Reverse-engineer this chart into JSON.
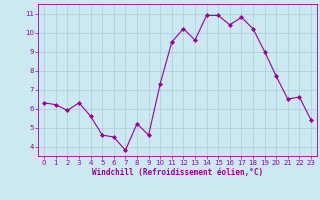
{
  "x": [
    0,
    1,
    2,
    3,
    4,
    5,
    6,
    7,
    8,
    9,
    10,
    11,
    12,
    13,
    14,
    15,
    16,
    17,
    18,
    19,
    20,
    21,
    22,
    23
  ],
  "y": [
    6.3,
    6.2,
    5.9,
    6.3,
    5.6,
    4.6,
    4.5,
    3.8,
    5.2,
    4.6,
    7.3,
    9.5,
    10.2,
    9.6,
    10.9,
    10.9,
    10.4,
    10.8,
    10.2,
    9.0,
    7.7,
    6.5,
    6.6,
    5.4
  ],
  "line_color": "#990099",
  "marker_color": "#990099",
  "bg_color": "#cce8f0",
  "grid_color": "#aaccdd",
  "xlabel": "Windchill (Refroidissement éolien,°C)",
  "xlabel_color": "#990099",
  "tick_color": "#990099",
  "ylim": [
    3.5,
    11.5
  ],
  "xlim": [
    -0.5,
    23.5
  ],
  "yticks": [
    4,
    5,
    6,
    7,
    8,
    9,
    10,
    11
  ],
  "xticks": [
    0,
    1,
    2,
    3,
    4,
    5,
    6,
    7,
    8,
    9,
    10,
    11,
    12,
    13,
    14,
    15,
    16,
    17,
    18,
    19,
    20,
    21,
    22,
    23
  ],
  "xtick_labels": [
    "0",
    "1",
    "2",
    "3",
    "4",
    "5",
    "6",
    "7",
    "8",
    "9",
    "10",
    "11",
    "12",
    "13",
    "14",
    "15",
    "16",
    "17",
    "18",
    "19",
    "20",
    "21",
    "22",
    "23"
  ]
}
